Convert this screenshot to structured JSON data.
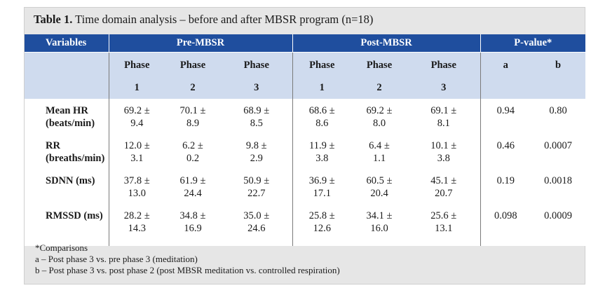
{
  "caption": {
    "label": "Table 1.",
    "text": " Time domain analysis – before and after MBSR program (n=18)"
  },
  "headers": {
    "variables": "Variables",
    "pre": "Pre-MBSR",
    "post": "Post-MBSR",
    "pvalue": "P-value*"
  },
  "subheaders": {
    "pre": [
      {
        "word": "Phase",
        "num": "1"
      },
      {
        "word": "Phase",
        "num": "2"
      },
      {
        "word": "Phase",
        "num": "3"
      }
    ],
    "post": [
      {
        "word": "Phase",
        "num": "1"
      },
      {
        "word": "Phase",
        "num": "2"
      },
      {
        "word": "Phase",
        "num": "3"
      }
    ],
    "a": "a",
    "b": "b"
  },
  "rows": [
    {
      "var1": "Mean HR",
      "var2": "(beats/min)",
      "pre": [
        [
          "69.2 ±",
          "9.4"
        ],
        [
          "70.1 ±",
          "8.9"
        ],
        [
          "68.9 ±",
          "8.5"
        ]
      ],
      "post": [
        [
          "68.6 ±",
          "8.6"
        ],
        [
          "69.2 ±",
          "8.0"
        ],
        [
          "69.1 ±",
          "8.1"
        ]
      ],
      "a": "0.94",
      "b": "0.80"
    },
    {
      "var1": "RR",
      "var2": "(breaths/min)",
      "pre": [
        [
          "12.0 ±",
          "3.1"
        ],
        [
          "6.2 ±",
          "0.2"
        ],
        [
          "9.8 ±",
          "2.9"
        ]
      ],
      "post": [
        [
          "11.9 ±",
          "3.8"
        ],
        [
          "6.4 ±",
          "1.1"
        ],
        [
          "10.1 ±",
          "3.8"
        ]
      ],
      "a": "0.46",
      "b": "0.0007"
    },
    {
      "var1": "SDNN (ms)",
      "var2": "",
      "pre": [
        [
          "37.8 ±",
          "13.0"
        ],
        [
          "61.9 ±",
          "24.4"
        ],
        [
          "50.9 ±",
          "22.7"
        ]
      ],
      "post": [
        [
          "36.9 ±",
          "17.1"
        ],
        [
          "60.5 ±",
          "20.4"
        ],
        [
          "45.1 ±",
          "20.7"
        ]
      ],
      "a": "0.19",
      "b": "0.0018"
    },
    {
      "var1": "RMSSD (ms)",
      "var2": "",
      "pre": [
        [
          "28.2 ±",
          "14.3"
        ],
        [
          "34.8 ±",
          "16.9"
        ],
        [
          "35.0 ±",
          "24.6"
        ]
      ],
      "post": [
        [
          "25.8 ±",
          "12.6"
        ],
        [
          "34.1 ±",
          "16.0"
        ],
        [
          "25.6 ±",
          "13.1"
        ]
      ],
      "a": "0.098",
      "b": "0.0009"
    }
  ],
  "notes": [
    "*Comparisons",
    "a – Post phase 3 vs. pre phase 3 (meditation)",
    "b – Post phase 3 vs. post phase 2 (post MBSR meditation vs. controlled respiration)"
  ],
  "colors": {
    "header_bg": "#1f4e9e",
    "subheader_bg": "#cfdbee",
    "frame_bg": "#e6e6e6"
  }
}
